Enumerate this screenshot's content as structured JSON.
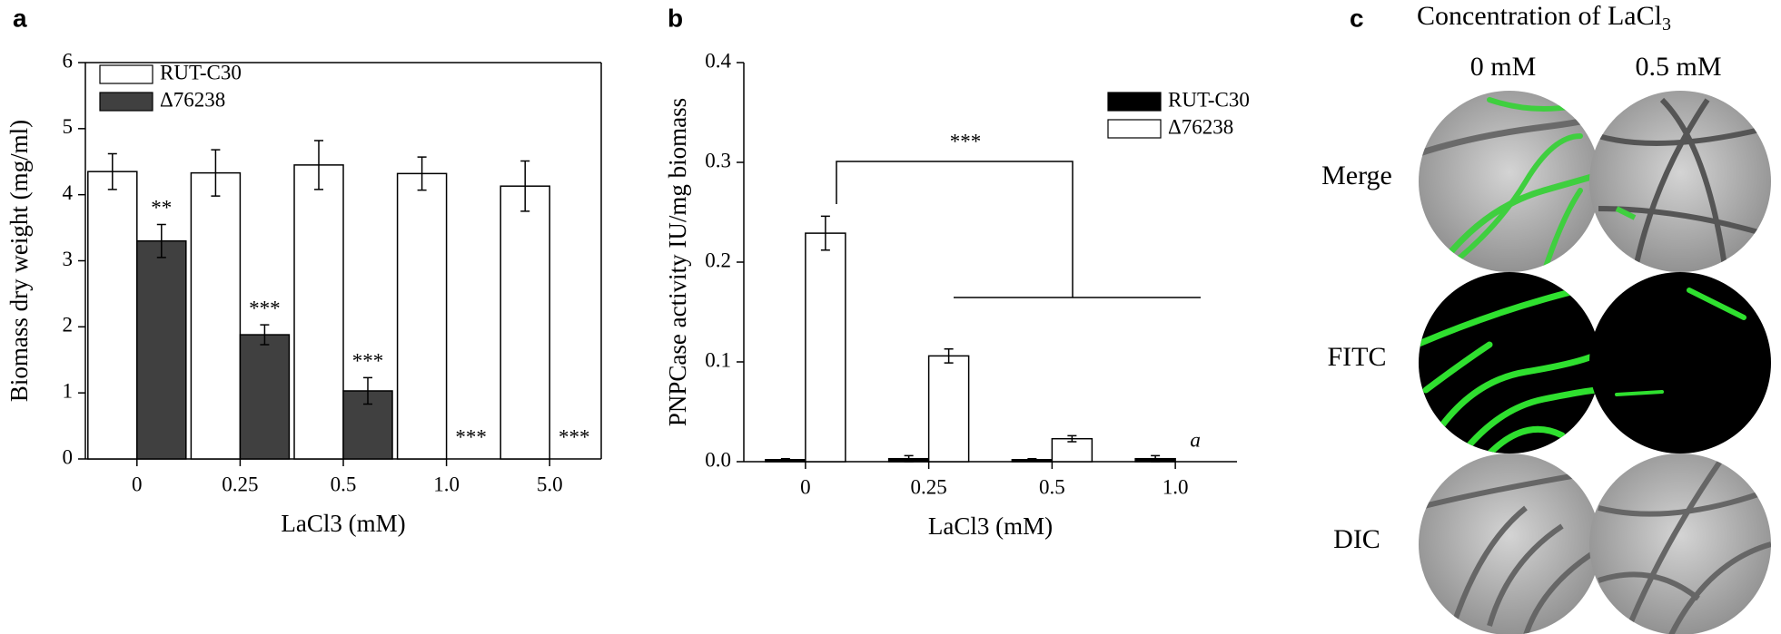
{
  "chart_data": [
    {
      "type": "bar",
      "panel_label": "a",
      "ylabel": "Biomass dry weight (mg/ml)",
      "xlabel": "LaCl3 (mM)",
      "categories": [
        "0",
        "0.25",
        "0.5",
        "1.0",
        "5.0"
      ],
      "series": [
        {
          "name": "RUT-C30",
          "color": "#ffffff",
          "values": [
            4.35,
            4.33,
            4.45,
            4.32,
            4.13
          ],
          "errors": [
            0.27,
            0.35,
            0.37,
            0.25,
            0.38
          ],
          "value_annotations": [
            null,
            null,
            null,
            null,
            null
          ]
        },
        {
          "name": "Δ76238",
          "color": "#404040",
          "values": [
            3.3,
            1.88,
            1.03,
            0,
            0
          ],
          "errors": [
            0.25,
            0.15,
            0.2,
            null,
            null
          ],
          "value_annotations": [
            "**",
            "***",
            "***",
            "***",
            "***"
          ]
        }
      ],
      "ylim": [
        0,
        6
      ],
      "yticks": [
        0,
        1,
        2,
        3,
        4,
        5,
        6
      ],
      "legend": "upper left",
      "frame": true
    },
    {
      "type": "bar",
      "panel_label": "b",
      "ylabel": "PNPCase activity IU/mg biomass",
      "xlabel": "LaCl3 (mM)",
      "categories": [
        "0",
        "0.25",
        "0.5",
        "1.0"
      ],
      "series": [
        {
          "name": "RUT-C30",
          "color": "#000000",
          "values": [
            0.002,
            0.003,
            0.002,
            0.003
          ],
          "errors": [
            0.001,
            0.003,
            0.001,
            0.003
          ],
          "value_annotations": [
            null,
            null,
            null,
            null
          ]
        },
        {
          "name": "Δ76238",
          "color": "#ffffff",
          "values": [
            0.229,
            0.106,
            0.023,
            null
          ],
          "errors": [
            0.017,
            0.007,
            0.003,
            null
          ],
          "value_annotations": [
            null,
            null,
            null,
            "a"
          ]
        }
      ],
      "ylim": [
        0,
        0.4
      ],
      "yticks": [
        {
          "value": 0,
          "label": "0.0"
        },
        0.1,
        0.2,
        0.3,
        0.4
      ],
      "legend": "upper right",
      "frame": false,
      "bracket_label": "***"
    }
  ],
  "panel_c": {
    "panel_label": "c",
    "title": "Concentration of LaCl",
    "title_sub": "3",
    "columns": [
      "0 mM",
      "0.5 mM"
    ],
    "rows": [
      "Merge",
      "FITC",
      "DIC"
    ]
  }
}
